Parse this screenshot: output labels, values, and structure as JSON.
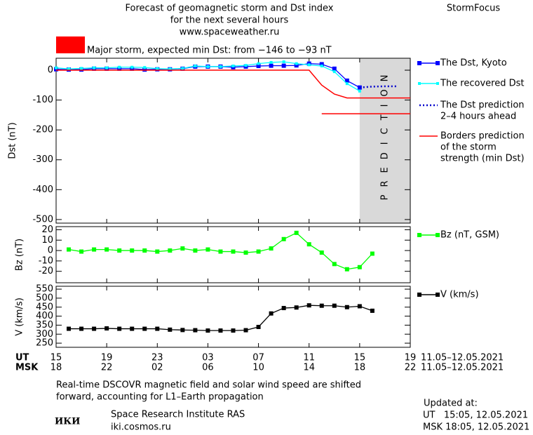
{
  "header": {
    "title_lines": [
      "Forecast of geomagnetic storm and Dst index",
      "for the next several hours",
      "www.spaceweather.ru"
    ],
    "brand": "StormFocus",
    "storm_level": {
      "color": "#ff0000",
      "label": "Major storm, expected min Dst: from −146 to −93 nT"
    }
  },
  "x_axis": {
    "xlim": [
      0,
      28
    ],
    "date_range": "11.05–12.05.2021",
    "rows": [
      {
        "name": "UT",
        "ticks": [
          {
            "value": 0,
            "label": "15"
          },
          {
            "value": 4,
            "label": "19"
          },
          {
            "value": 8,
            "label": "23"
          },
          {
            "value": 12,
            "label": "03"
          },
          {
            "value": 16,
            "label": "07"
          },
          {
            "value": 20,
            "label": "11"
          },
          {
            "value": 24,
            "label": "15"
          },
          {
            "value": 28,
            "label": "19"
          }
        ]
      },
      {
        "name": "MSK",
        "ticks": [
          {
            "value": 0,
            "label": "18"
          },
          {
            "value": 4,
            "label": "22"
          },
          {
            "value": 8,
            "label": "02"
          },
          {
            "value": 12,
            "label": "06"
          },
          {
            "value": 16,
            "label": "10"
          },
          {
            "value": 20,
            "label": "14"
          },
          {
            "value": 24,
            "label": "18"
          },
          {
            "value": 28,
            "label": "22"
          }
        ]
      }
    ]
  },
  "chart_data": [
    {
      "type": "line",
      "ylabel": "Dst (nT)",
      "ylim": [
        -512,
        40
      ],
      "yticks": [
        0,
        -100,
        -200,
        -300,
        -400,
        -500
      ],
      "prediction_region": {
        "xlim": [
          24,
          28
        ],
        "label": "PREDICTION",
        "color": "#d9d9d9"
      },
      "series": [
        {
          "name": [
            "The Dst, Kyoto"
          ],
          "color": "#0000ff",
          "marker": "square",
          "x": [
            0,
            1,
            2,
            3,
            4,
            5,
            6,
            7,
            8,
            9,
            10,
            11,
            12,
            13,
            14,
            15,
            16,
            17,
            18,
            19,
            20,
            21,
            22,
            23,
            24
          ],
          "values": [
            3,
            2,
            2,
            5,
            5,
            5,
            5,
            2,
            3,
            3,
            5,
            12,
            12,
            12,
            10,
            12,
            14,
            15,
            15,
            16,
            22,
            20,
            5,
            -35,
            -58
          ]
        },
        {
          "name": [
            "The recovered Dst"
          ],
          "color": "#00ffff",
          "marker": "small",
          "x": [
            0,
            1,
            2,
            3,
            4,
            5,
            6,
            7,
            8,
            9,
            10,
            11,
            12,
            13,
            14,
            15,
            16,
            17,
            18,
            19,
            20,
            21,
            22,
            23,
            24
          ],
          "values": [
            8,
            4,
            6,
            8,
            8,
            10,
            10,
            9,
            5,
            4,
            6,
            14,
            12,
            12,
            14,
            16,
            22,
            26,
            28,
            22,
            18,
            14,
            -5,
            -45,
            -70
          ]
        },
        {
          "name": [
            "The Dst prediction",
            "2–4 hours ahead"
          ],
          "color": "#0000cc",
          "marker": "dotted",
          "x": [
            24,
            25,
            26,
            27
          ],
          "values": [
            -58,
            -55,
            -54,
            -54
          ]
        },
        {
          "name": [
            "Borders prediction",
            "of the storm",
            "strength (min Dst)"
          ],
          "color": "#ff0000",
          "marker": "none",
          "x": [
            0,
            20,
            21,
            22,
            23,
            28,
            null,
            21,
            28
          ],
          "values": [
            0,
            0,
            -50,
            -80,
            -93,
            -93,
            null,
            -146,
            -146
          ]
        }
      ]
    },
    {
      "type": "line",
      "ylabel": "Bz (nT)",
      "ylim": [
        -31,
        23
      ],
      "yticks": [
        -20,
        -10,
        0,
        10,
        20
      ],
      "series": [
        {
          "name": [
            "Bz (nT, GSM)"
          ],
          "color": "#00ff00",
          "marker": "square",
          "x": [
            1,
            2,
            3,
            4,
            5,
            6,
            7,
            8,
            9,
            10,
            11,
            12,
            13,
            14,
            15,
            16,
            17,
            18,
            19,
            20,
            21,
            22,
            23,
            24,
            25
          ],
          "values": [
            1,
            -1,
            1,
            1,
            0,
            0,
            0,
            -1,
            0,
            2,
            0,
            1,
            -1,
            -1,
            -2,
            -1,
            2,
            11,
            17,
            6,
            -2,
            -13,
            -18,
            -16,
            -3
          ]
        }
      ]
    },
    {
      "type": "line",
      "ylabel": "V (km/s)",
      "ylim": [
        227,
        566
      ],
      "yticks": [
        250,
        300,
        350,
        400,
        450,
        500,
        550
      ],
      "series": [
        {
          "name": [
            "V (km/s)"
          ],
          "color": "#000000",
          "marker": "square",
          "x": [
            1,
            2,
            3,
            4,
            5,
            6,
            7,
            8,
            9,
            10,
            11,
            12,
            13,
            14,
            15,
            16,
            17,
            18,
            19,
            20,
            21,
            22,
            23,
            24,
            25
          ],
          "values": [
            330,
            330,
            330,
            332,
            330,
            330,
            330,
            330,
            325,
            323,
            322,
            320,
            320,
            320,
            322,
            340,
            415,
            445,
            448,
            460,
            458,
            458,
            450,
            455,
            430
          ]
        }
      ]
    }
  ],
  "footer": {
    "note_lines": [
      "Real-time DSCOVR magnetic field and solar wind speed are shifted",
      "forward, accounting for L1–Earth propagation"
    ],
    "logo": "ИКИ",
    "institute": "Space Research Institute RAS",
    "site": "iki.cosmos.ru",
    "updated_label": "Updated at:",
    "updated_lines": [
      "UT   15:05, 12.05.2021",
      "MSK 18:05, 12.05.2021"
    ]
  }
}
